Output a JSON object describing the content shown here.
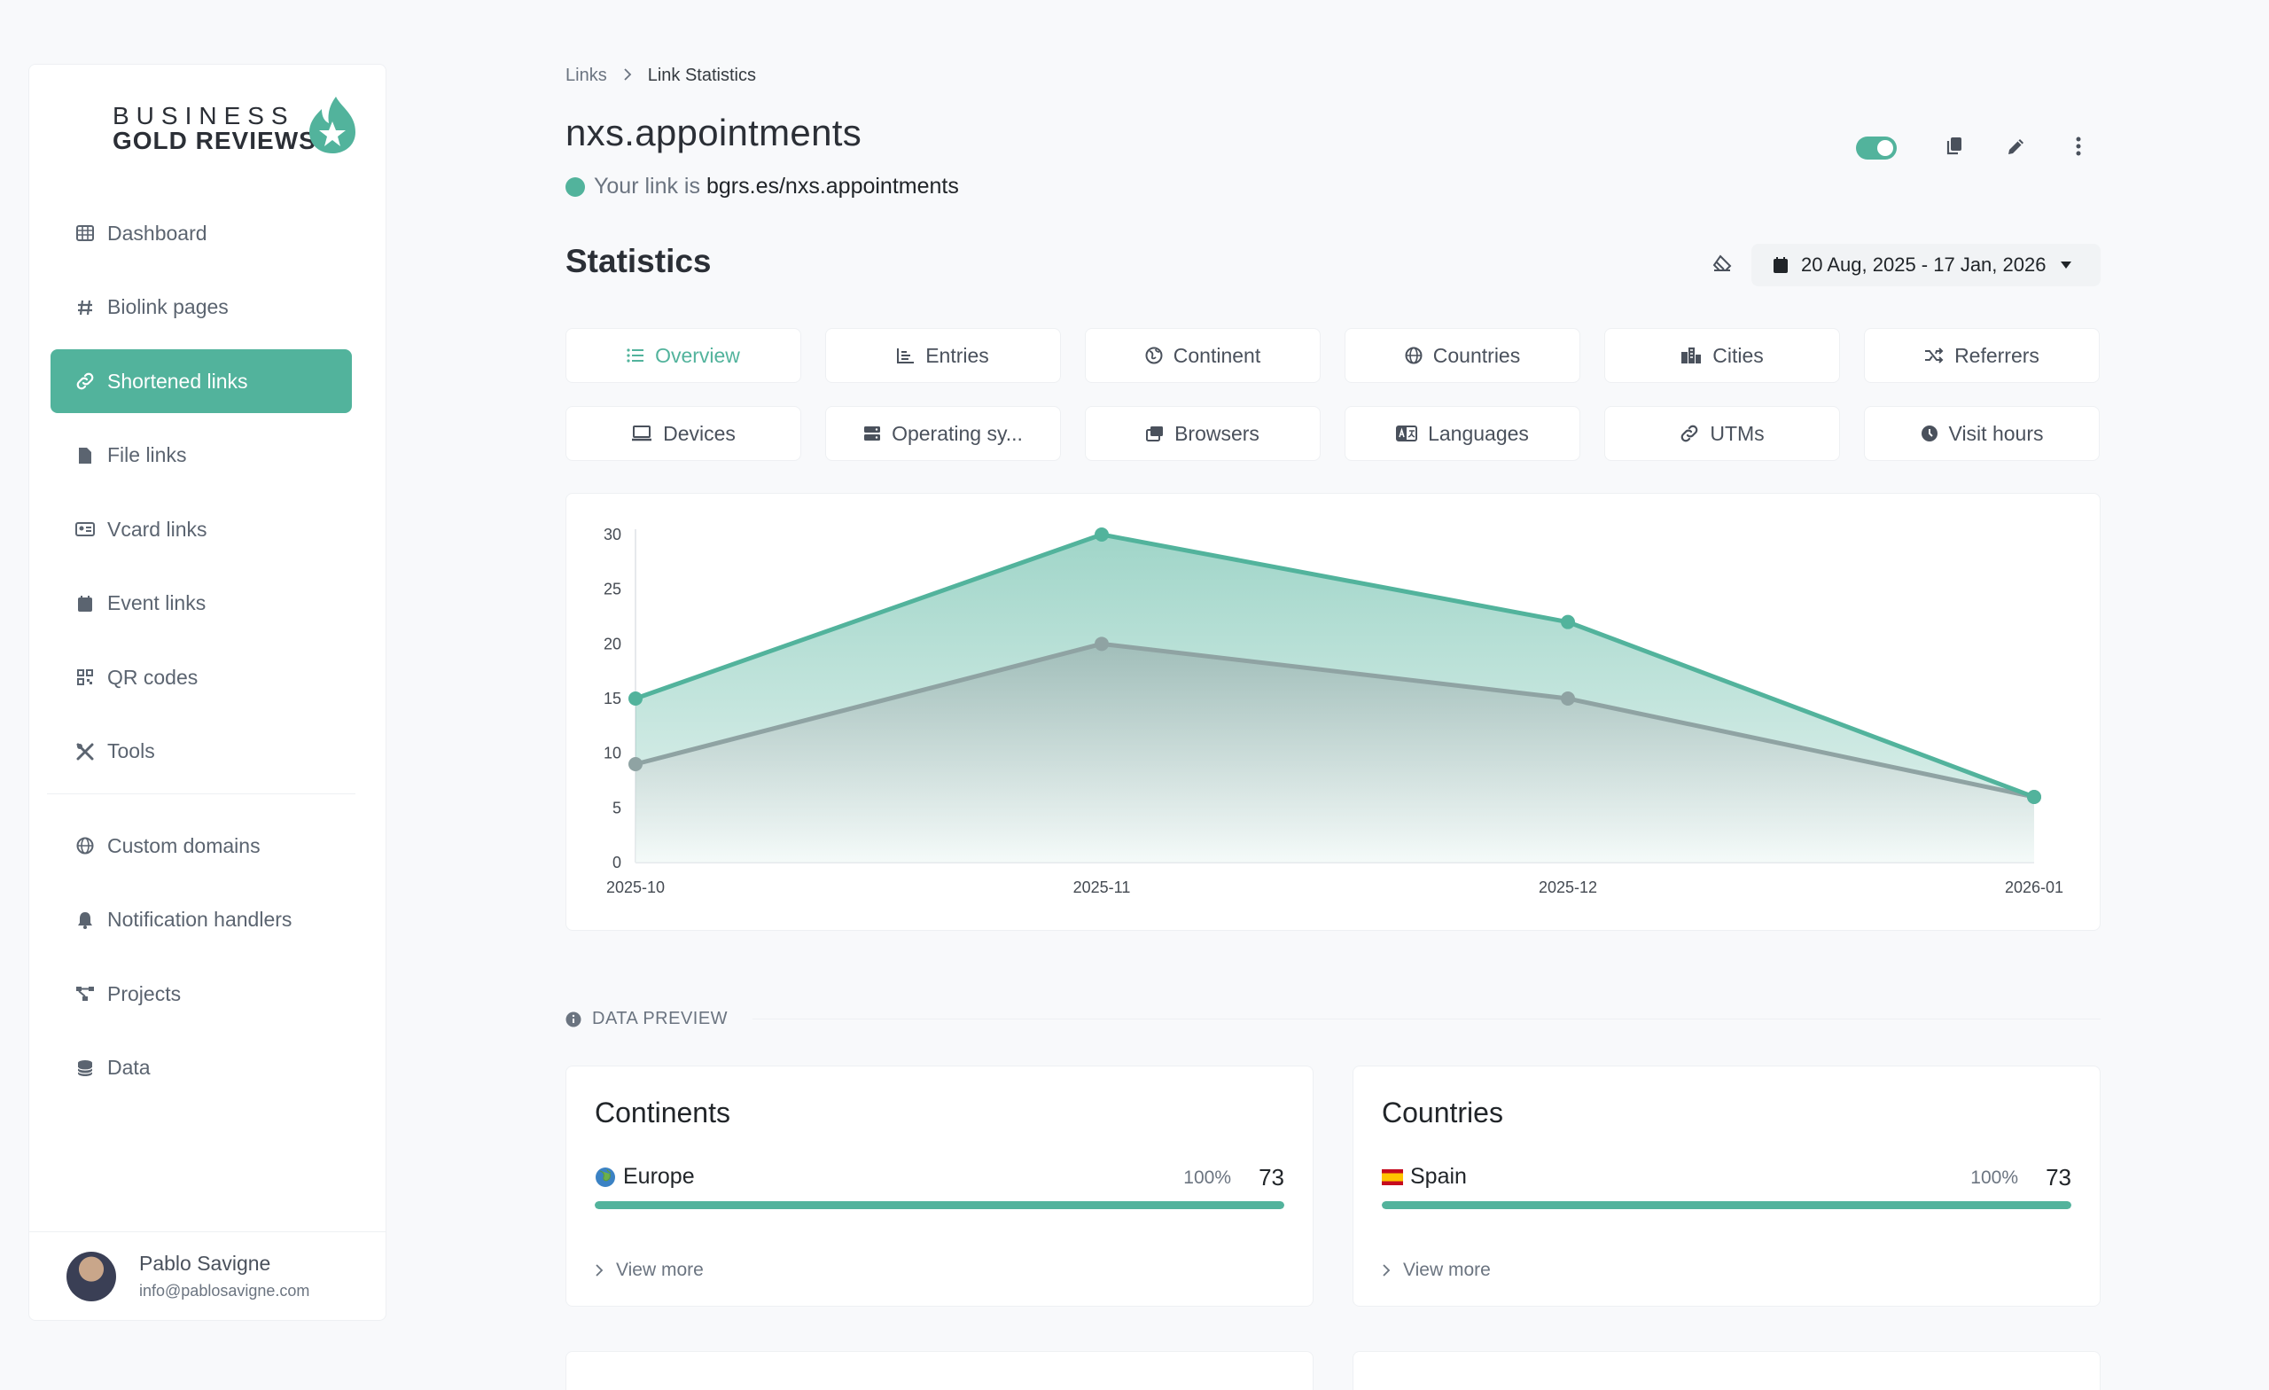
{
  "brand": {
    "line1": "BUSINESS",
    "line2": "GOLD REVIEWS"
  },
  "sidebar": {
    "items": [
      {
        "label": "Dashboard",
        "icon": "table-icon",
        "active": false
      },
      {
        "label": "Biolink pages",
        "icon": "hash-icon",
        "active": false
      },
      {
        "label": "Shortened links",
        "icon": "link-icon",
        "active": true
      },
      {
        "label": "File links",
        "icon": "file-icon",
        "active": false
      },
      {
        "label": "Vcard links",
        "icon": "id-card-icon",
        "active": false
      },
      {
        "label": "Event links",
        "icon": "calendar-icon",
        "active": false
      },
      {
        "label": "QR codes",
        "icon": "qrcode-icon",
        "active": false
      },
      {
        "label": "Tools",
        "icon": "tools-icon",
        "active": false
      }
    ],
    "items2": [
      {
        "label": "Custom domains",
        "icon": "globe-icon"
      },
      {
        "label": "Notification handlers",
        "icon": "bell-icon"
      },
      {
        "label": "Projects",
        "icon": "project-diagram-icon"
      },
      {
        "label": "Data",
        "icon": "database-icon"
      }
    ],
    "user": {
      "name": "Pablo Savigne",
      "email": "info@pablosavigne.com"
    }
  },
  "breadcrumb": {
    "parent": "Links",
    "current": "Link Statistics"
  },
  "page": {
    "title": "nxs.appointments",
    "link_prefix": "Your link is",
    "link_url": "bgrs.es/nxs.appointments"
  },
  "statistics": {
    "heading": "Statistics",
    "date_range": "20 Aug, 2025 - 17 Jan, 2026"
  },
  "tabs": [
    {
      "label": "Overview",
      "icon": "list-icon",
      "active": true
    },
    {
      "label": "Entries",
      "icon": "chart-bar-icon"
    },
    {
      "label": "Continent",
      "icon": "globe-europe-icon"
    },
    {
      "label": "Countries",
      "icon": "globe-icon"
    },
    {
      "label": "Cities",
      "icon": "city-icon"
    },
    {
      "label": "Referrers",
      "icon": "random-icon"
    },
    {
      "label": "Devices",
      "icon": "laptop-icon"
    },
    {
      "label": "Operating sy...",
      "icon": "server-icon"
    },
    {
      "label": "Browsers",
      "icon": "window-icon"
    },
    {
      "label": "Languages",
      "icon": "language-icon"
    },
    {
      "label": "UTMs",
      "icon": "link-icon"
    },
    {
      "label": "Visit hours",
      "icon": "clock-icon"
    }
  ],
  "chart_data": {
    "type": "area",
    "x": [
      "2025-10",
      "2025-11",
      "2025-12",
      "2026-01"
    ],
    "series": [
      {
        "values": [
          15,
          30,
          22,
          6
        ],
        "color": "#52b39c"
      },
      {
        "values": [
          9,
          20,
          15,
          6
        ],
        "color": "#8fa3a3"
      }
    ],
    "ylim": [
      0,
      30
    ],
    "yticks": [
      0,
      5,
      10,
      15,
      20,
      25,
      30
    ],
    "grid": false
  },
  "data_preview": {
    "label": "DATA PREVIEW",
    "cards": [
      {
        "title": "Continents",
        "item": "Europe",
        "flag": "globe-europe-icon",
        "percent_label": "100%",
        "percent": 100,
        "count": "73",
        "more": "View more"
      },
      {
        "title": "Countries",
        "item": "Spain",
        "flag": "spain-flag-icon",
        "percent_label": "100%",
        "percent": 100,
        "count": "73",
        "more": "View more"
      }
    ]
  },
  "colors": {
    "accent": "#52b39c",
    "secondary_series": "#8fa3a3"
  }
}
